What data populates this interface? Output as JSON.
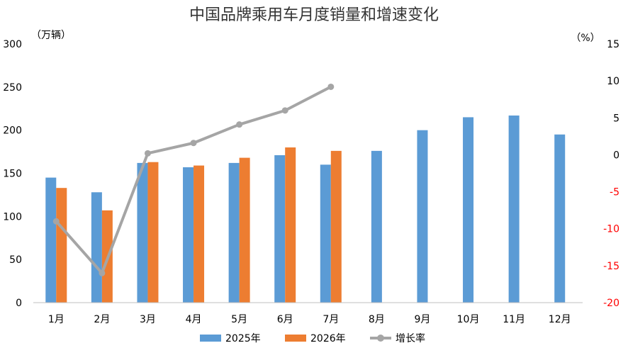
{
  "chart_data": {
    "type": "bar",
    "title": "中国品牌乘用车月度销量和增速变化",
    "y_left_unit": "（万辆）",
    "y_right_unit": "（%）",
    "categories": [
      "1月",
      "2月",
      "3月",
      "4月",
      "5月",
      "6月",
      "7月",
      "8月",
      "9月",
      "10月",
      "11月",
      "12月"
    ],
    "y_left_range": [
      0,
      300
    ],
    "y_left_ticks": [
      "0",
      "50",
      "100",
      "150",
      "200",
      "250",
      "300"
    ],
    "y_right_range": [
      -20,
      15
    ],
    "y_right_ticks": [
      "-20",
      "-15",
      "-10",
      "-5",
      "0",
      "5",
      "10",
      "15"
    ],
    "grid": false,
    "legend_position": "bottom",
    "series": [
      {
        "name": "2025年",
        "kind": "bar",
        "axis": "left",
        "color": "#5b9bd5",
        "values": [
          145,
          128,
          162,
          157,
          162,
          171,
          160,
          176,
          200,
          215,
          217,
          195
        ]
      },
      {
        "name": "2026年",
        "kind": "bar",
        "axis": "left",
        "color": "#ed7d31",
        "values": [
          133,
          107,
          163,
          159,
          168,
          180,
          176,
          null,
          null,
          null,
          null,
          null
        ]
      },
      {
        "name": "增长率",
        "kind": "line",
        "axis": "right",
        "color": "#a5a5a5",
        "values": [
          -9,
          -16,
          0.2,
          1.6,
          4.1,
          6.0,
          9.2,
          null,
          null,
          null,
          null,
          null
        ]
      }
    ]
  }
}
